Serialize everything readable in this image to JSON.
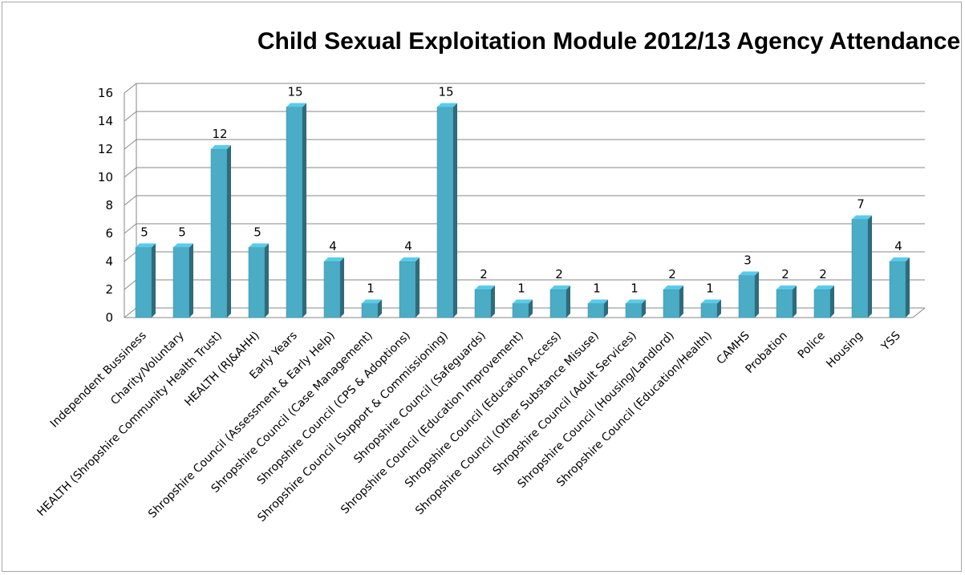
{
  "chart_data": {
    "type": "bar",
    "title": "Child Sexual Exploitation Module 2012/13 Agency Attendance",
    "xlabel": "",
    "ylabel": "",
    "ylim": [
      0,
      16
    ],
    "ytick_step": 2,
    "grid": true,
    "legend": "none",
    "bar_color": "#4bacc6",
    "categories": [
      "Independent Bussiness",
      "Charity/Voluntary",
      "HEALTH (Shropshire Community Health Trust)",
      "HEALTH (RJ&AHH)",
      "Early Years",
      "Shropshire Council (Assessment & Early Help)",
      "Shropshire Council (Case Management)",
      "Shropshire Council (CPS & Adoptions)",
      "Shropshire Council (Support & Commissioning)",
      "Shropshire Council (Safeguards)",
      "Shropshire Council (Education Improvement)",
      "Shropshire Council (Education Access)",
      "Shropshire Council (Other Substance Misuse)",
      "Shropshire Council (Adult Services)",
      "Shropshire Council (Housing/Landlord)",
      "Shropshire Council (Education/Health)",
      "CAMHS",
      "Probation",
      "Police",
      "Housing",
      "YSS"
    ],
    "values": [
      5,
      5,
      12,
      5,
      15,
      4,
      1,
      4,
      15,
      2,
      1,
      2,
      1,
      1,
      2,
      1,
      3,
      2,
      2,
      7,
      4
    ]
  }
}
